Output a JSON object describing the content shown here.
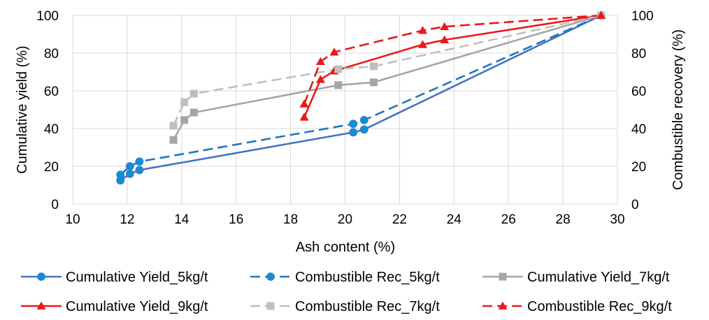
{
  "chart_data": {
    "type": "line",
    "xlabel": "Ash content (%)",
    "ylabel": "Cumulative  yield (%)",
    "y2label": "Combustible recovery (%)",
    "xlim": [
      10,
      30
    ],
    "ylim": [
      0,
      100
    ],
    "y2lim": [
      0,
      100
    ],
    "x_ticks": [
      "10",
      "12",
      "14",
      "16",
      "18",
      "20",
      "22",
      "24",
      "26",
      "28",
      "30"
    ],
    "y_ticks": [
      "0",
      "20",
      "40",
      "60",
      "80",
      "100"
    ],
    "y2_ticks": [
      "0",
      "20",
      "40",
      "60",
      "80",
      "100"
    ],
    "grid": true,
    "legend_position": "bottom",
    "series": [
      {
        "name": "Cumulative Yield_5kg/t",
        "color": "#4472C4",
        "dash": "solid",
        "marker": "circle",
        "marker_color": "#0F8FD6",
        "points": [
          [
            11.75,
            12.5
          ],
          [
            12.1,
            16
          ],
          [
            12.45,
            18
          ],
          [
            20.3,
            38
          ],
          [
            20.7,
            39.5
          ],
          [
            29.4,
            100
          ]
        ]
      },
      {
        "name": "Combustible Rec_5kg/t",
        "color": "#1F77BF",
        "dash": "dashed",
        "marker": "circle",
        "marker_color": "#0F8FD6",
        "points": [
          [
            11.75,
            15.5
          ],
          [
            12.1,
            20
          ],
          [
            12.45,
            22.5
          ],
          [
            20.3,
            42.5
          ],
          [
            20.7,
            44.5
          ],
          [
            29.4,
            100
          ]
        ]
      },
      {
        "name": "Cumulative Yield_7kg/t",
        "color": "#A5A5A5",
        "dash": "solid",
        "marker": "square",
        "marker_color": "#A5A5A5",
        "points": [
          [
            13.7,
            34
          ],
          [
            14.1,
            44.5
          ],
          [
            14.45,
            48.5
          ],
          [
            19.75,
            63
          ],
          [
            21.05,
            64.5
          ],
          [
            29.4,
            100
          ]
        ]
      },
      {
        "name": "Cumulative Yield_9kg/t",
        "color": "#E8191C",
        "dash": "solid",
        "marker": "triangle",
        "marker_color": "#E8191C",
        "points": [
          [
            18.5,
            46
          ],
          [
            19.1,
            66
          ],
          [
            19.6,
            70.5
          ],
          [
            22.85,
            84.5
          ],
          [
            23.65,
            87
          ],
          [
            29.4,
            100
          ]
        ]
      },
      {
        "name": "Combustible Rec_7kg/t",
        "color": "#BFBFBF",
        "dash": "dashed",
        "marker": "square",
        "marker_color": "#BFBFBF",
        "points": [
          [
            13.7,
            41.5
          ],
          [
            14.1,
            54
          ],
          [
            14.45,
            58.5
          ],
          [
            19.75,
            71.5
          ],
          [
            21.05,
            73
          ],
          [
            29.4,
            100
          ]
        ]
      },
      {
        "name": "Combustible Rec_9kg/t",
        "color": "#E8191C",
        "dash": "dashed",
        "marker": "triangle",
        "marker_color": "#E8191C",
        "points": [
          [
            18.5,
            53
          ],
          [
            19.1,
            75.5
          ],
          [
            19.6,
            80.5
          ],
          [
            22.85,
            92
          ],
          [
            23.65,
            94
          ],
          [
            29.4,
            100
          ]
        ]
      }
    ]
  }
}
